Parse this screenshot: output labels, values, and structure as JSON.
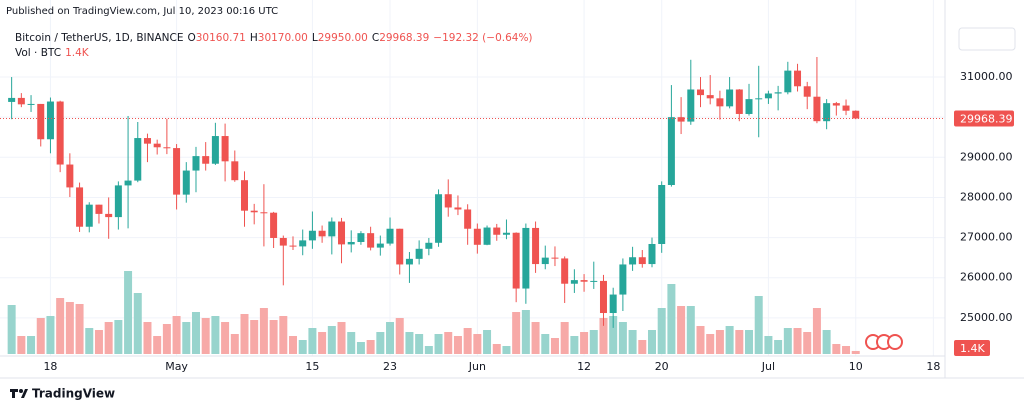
{
  "chart_data": {
    "type": "candlestick",
    "published": "Published on TradingView.com, Jul 10, 2023 00:16 UTC",
    "title": "Bitcoin / TetherUS, 1D, BINANCE",
    "legend_items": [
      {
        "key": "O",
        "value": "30160.71"
      },
      {
        "key": "H",
        "value": "30170.00"
      },
      {
        "key": "L",
        "value": "29950.00"
      },
      {
        "key": "C",
        "value": "29968.39"
      }
    ],
    "change": "−192.32 (−0.64%)",
    "brand": "TradingView",
    "up_color": "#26a69a",
    "down_color": "#ef5350",
    "volume_up_color": "#98d4cd",
    "volume_down_color": "#f7a9a7",
    "grid": true,
    "open": [
      30380,
      30480,
      30320,
      30330,
      29450,
      30390,
      28820,
      28250,
      27270,
      27820,
      27590,
      27510,
      28300,
      28420,
      29480,
      29340,
      29250,
      29230,
      28070,
      28670,
      29030,
      28840,
      29530,
      28900,
      28430,
      27670,
      27630,
      27620,
      26990,
      26800,
      26780,
      26930,
      27170,
      27030,
      27400,
      26830,
      26890,
      27110,
      26750,
      26850,
      27220,
      26330,
      26470,
      26720,
      26870,
      28080,
      27750,
      27700,
      27220,
      26820,
      27250,
      27070,
      27120,
      25730,
      27240,
      26340,
      26500,
      26480,
      25850,
      25940,
      25900,
      25920,
      25120,
      25580,
      26330,
      26510,
      26340,
      26840,
      28310,
      30000,
      29890,
      30690,
      30550,
      30470,
      30270,
      30690,
      30080,
      30450,
      30470,
      30590,
      30620,
      31160,
      30770,
      30510,
      29900,
      30350,
      30290,
      30160.71
    ],
    "high": [
      31000,
      30600,
      30550,
      30330,
      30490,
      30410,
      29100,
      28370,
      27880,
      27820,
      28000,
      28400,
      30030,
      29880,
      29590,
      29440,
      29960,
      29330,
      28880,
      29260,
      29380,
      29860,
      29840,
      29170,
      28650,
      27840,
      28330,
      27640,
      27050,
      27030,
      27200,
      27650,
      27300,
      27500,
      27490,
      27180,
      27160,
      27270,
      27050,
      27500,
      27220,
      26640,
      26930,
      26990,
      28200,
      28450,
      28050,
      27830,
      27350,
      27300,
      27340,
      27450,
      27130,
      27350,
      27400,
      26800,
      26780,
      26530,
      26210,
      26090,
      26400,
      26070,
      25750,
      26480,
      26770,
      26690,
      27000,
      28400,
      30800,
      30500,
      31430,
      31000,
      31050,
      30660,
      31000,
      30700,
      30830,
      31280,
      30660,
      30780,
      31380,
      31330,
      30880,
      31500,
      30450,
      30380,
      30440,
      30170
    ],
    "low": [
      29950,
      30250,
      30130,
      29270,
      29100,
      28630,
      28010,
      27140,
      27130,
      27350,
      26970,
      27200,
      27230,
      28380,
      28880,
      29070,
      29080,
      27700,
      27870,
      28130,
      28670,
      28810,
      28400,
      28390,
      27270,
      27330,
      26780,
      26740,
      25810,
      26690,
      26560,
      26720,
      26870,
      26580,
      26360,
      26630,
      26820,
      26680,
      26550,
      26800,
      26080,
      25870,
      26330,
      26560,
      26770,
      27520,
      27560,
      26820,
      26600,
      26810,
      26920,
      26960,
      25390,
      25350,
      26120,
      26210,
      26290,
      25370,
      25620,
      25650,
      25720,
      24800,
      24750,
      25170,
      26170,
      26250,
      26260,
      26620,
      28270,
      29580,
      29810,
      30250,
      30320,
      29940,
      30220,
      29900,
      30040,
      29500,
      30330,
      30170,
      30570,
      30640,
      30200,
      29850,
      29700,
      30040,
      30050,
      29950
    ],
    "close": [
      30480,
      30320,
      30330,
      29450,
      30390,
      28820,
      28250,
      27270,
      27820,
      27590,
      27510,
      28300,
      28420,
      29480,
      29340,
      29250,
      29230,
      28070,
      28670,
      29030,
      28840,
      29530,
      28900,
      28430,
      27670,
      27630,
      27620,
      26990,
      26800,
      26780,
      26930,
      27170,
      27030,
      27400,
      26830,
      26890,
      27110,
      26750,
      26850,
      27220,
      26330,
      26470,
      26720,
      26870,
      28080,
      27750,
      27700,
      27220,
      26820,
      27250,
      27070,
      27120,
      25730,
      27240,
      26340,
      26500,
      26480,
      25850,
      25940,
      25900,
      25920,
      25120,
      25580,
      26330,
      26510,
      26340,
      26840,
      28310,
      30000,
      29890,
      30690,
      30550,
      30470,
      30270,
      30690,
      30080,
      30450,
      30470,
      30590,
      30620,
      31160,
      30770,
      30510,
      29900,
      30350,
      30290,
      30160.71,
      29968.39
    ],
    "volume": {
      "name": "Vol · BTC",
      "values": [
        22540,
        8280,
        8280,
        16560,
        17480,
        25760,
        23920,
        23000,
        11960,
        11040,
        14720,
        15640,
        38180,
        28060,
        14720,
        8280,
        13800,
        17480,
        14720,
        19320,
        16560,
        17480,
        14720,
        9200,
        18400,
        15640,
        21160,
        15640,
        17480,
        8280,
        6440,
        11960,
        10120,
        12880,
        14720,
        10120,
        5520,
        6440,
        10120,
        14720,
        16560,
        10120,
        9200,
        3680,
        9200,
        10120,
        8280,
        11960,
        9200,
        11040,
        4600,
        3680,
        19320,
        20240,
        14720,
        9200,
        7360,
        14720,
        8280,
        10120,
        11040,
        16560,
        17480,
        14720,
        11040,
        6440,
        11040,
        21160,
        32200,
        22080,
        22080,
        12880,
        9200,
        11040,
        12880,
        11040,
        11040,
        26680,
        8280,
        6440,
        11960,
        11960,
        10120,
        21160,
        11040,
        4600,
        3680,
        1400
      ],
      "value_labels": [
        null,
        null,
        null,
        null,
        null,
        null,
        null,
        null,
        null,
        null,
        null,
        null,
        null,
        null,
        null,
        null,
        null,
        null,
        null,
        null,
        null,
        null,
        null,
        null,
        null,
        null,
        null,
        null,
        null,
        null,
        null,
        null,
        null,
        null,
        null,
        null,
        null,
        null,
        null,
        null,
        null,
        null,
        null,
        null,
        null,
        null,
        null,
        null,
        null,
        null,
        null,
        null,
        null,
        null,
        null,
        null,
        null,
        null,
        null,
        null,
        null,
        null,
        null,
        null,
        null,
        null,
        null,
        null,
        null,
        null,
        null,
        null,
        null,
        null,
        null,
        null,
        null,
        null,
        null,
        null,
        null,
        null,
        null,
        null,
        null,
        null,
        null,
        "1.4K"
      ]
    },
    "xlim": [
      -1.2,
      96.2
    ],
    "xticks": [
      {
        "value": 4,
        "label": "18"
      },
      {
        "value": 17,
        "label": "May"
      },
      {
        "value": 31,
        "label": "15"
      },
      {
        "value": 39,
        "label": "23"
      },
      {
        "value": 48,
        "label": "Jun"
      },
      {
        "value": 59,
        "label": "12"
      },
      {
        "value": 67,
        "label": "20"
      },
      {
        "value": 78,
        "label": "Jul"
      },
      {
        "value": 87,
        "label": "10"
      },
      {
        "value": 95,
        "label": "18"
      }
    ],
    "ylim": [
      23700,
      32920
    ],
    "yticks": [
      {
        "value": 25000,
        "label": "25000.00"
      },
      {
        "value": 26000,
        "label": "26000.00"
      },
      {
        "value": 27000,
        "label": "27000.00"
      },
      {
        "value": 28000,
        "label": "28000.00"
      },
      {
        "value": 29000,
        "label": "29000.00"
      },
      {
        "value": 30000,
        "label": "30000.00"
      },
      {
        "value": 31000,
        "label": "31000.00"
      }
    ]
  }
}
